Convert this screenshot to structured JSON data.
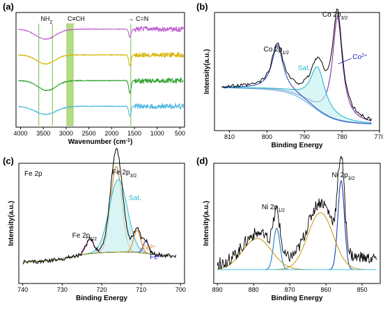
{
  "chart_data": [
    {
      "panel": "(a)",
      "type": "line",
      "xlabel": "Wavenumber (cm",
      "xlabel_sup": "-1",
      "xlabel_tail": ")",
      "ylabel": "",
      "xlim": [
        4100,
        400
      ],
      "x_reversed": true,
      "xticks": [
        4000,
        3500,
        3000,
        2500,
        2000,
        1500,
        1000,
        500
      ],
      "annotations": [
        {
          "text": "NH",
          "sub": "2",
          "x": 3430
        },
        {
          "text": "C≡CH",
          "x": 2780
        },
        {
          "text": "C=N",
          "x": 1450
        }
      ],
      "marker_lines": [
        3600,
        3300,
        1580
      ],
      "highlight_band": [
        2990,
        2840
      ],
      "highlight_color": "#92d050",
      "series": [
        {
          "color": "#c060d0",
          "offset": 3.0,
          "bands": [
            [
              3450,
              0.55,
              220
            ],
            [
              1600,
              0.45,
              25
            ]
          ]
        },
        {
          "color": "#d4b400",
          "offset": 2.0,
          "bands": [
            [
              3450,
              0.5,
              200
            ],
            [
              1600,
              0.6,
              25
            ]
          ]
        },
        {
          "color": "#2ca02c",
          "offset": 1.0,
          "bands": [
            [
              3420,
              0.55,
              200
            ],
            [
              1600,
              0.7,
              25
            ]
          ]
        },
        {
          "color": "#4bb8e0",
          "offset": 0.0,
          "bands": [
            [
              3450,
              0.45,
              230
            ],
            [
              1600,
              0.55,
              25
            ]
          ]
        }
      ]
    },
    {
      "panel": "(b)",
      "type": "line",
      "xlabel": "Binding Energy",
      "ylabel": "Intensity(a.u.)",
      "xlim": [
        814,
        770
      ],
      "x_reversed": true,
      "xticks": [
        810,
        800,
        790,
        780,
        770
      ],
      "annotations": [
        {
          "text": "Co 2p",
          "sub": "3/2",
          "x": 781.5
        },
        {
          "text": "Co 2p",
          "sub": "1/2",
          "x": 797.5
        },
        {
          "text": "Sat.",
          "x": 789
        },
        {
          "text": "Co",
          "sup": "2+",
          "x": 776
        }
      ],
      "peaks": [
        {
          "name": "Co 2p3/2",
          "center": 781.2,
          "height": 0.95,
          "width": 1.6,
          "color": "#7b2fa0"
        },
        {
          "name": "Sat.",
          "center": 786.5,
          "height": 0.4,
          "width": 2.4,
          "color": "#28b8d0"
        },
        {
          "name": "Co 2p1/2",
          "center": 797.2,
          "height": 0.42,
          "width": 1.8,
          "color": "#000000"
        }
      ],
      "background_color": "#4b9fd6",
      "fit_color": "#3cc0a0",
      "raw_color": "#000000"
    },
    {
      "panel": "(c)",
      "type": "line",
      "title": "Fe 2p",
      "xlabel": "Binding Energy",
      "ylabel": "Intensity(a.u.)",
      "xlim": [
        741,
        699
      ],
      "x_reversed": true,
      "xticks": [
        740,
        730,
        720,
        710,
        700
      ],
      "annotations": [
        {
          "text": "Fe 2p",
          "sub": "3/2",
          "x": 716
        },
        {
          "text": "Sat.",
          "x": 714
        },
        {
          "text": "Fe 2p",
          "sub": "1/2",
          "x": 724
        },
        {
          "text": "Fe",
          "sup": "3+",
          "x": 709.5
        },
        {
          "text": "Fe",
          "sup": "2+",
          "x": 707.5
        }
      ],
      "peaks": [
        {
          "name": "Fe 2p3/2",
          "center": 716.3,
          "height": 0.85,
          "width": 1.4,
          "color": "#c98a30"
        },
        {
          "name": "Sat.",
          "center": 715.8,
          "height": 0.72,
          "width": 2.3,
          "color": "#40c0d8"
        },
        {
          "name": "Fe 2p1/2",
          "center": 723.0,
          "height": 0.14,
          "width": 1.0,
          "color": "#c03ab0"
        },
        {
          "name": "Fe3+",
          "center": 711.0,
          "height": 0.22,
          "width": 0.9,
          "color": "#e08020"
        },
        {
          "name": "Fe2+",
          "center": 708.8,
          "height": 0.12,
          "width": 0.7,
          "color": "#2020c0"
        }
      ],
      "background_color": "#8aa020",
      "raw_color": "#000000"
    },
    {
      "panel": "(d)",
      "type": "line",
      "xlabel": "Binding Energy",
      "ylabel": "Intensity(a.u.)",
      "xlim": [
        891,
        845
      ],
      "x_reversed": true,
      "xticks": [
        890,
        880,
        870,
        860,
        850
      ],
      "annotations": [
        {
          "text": "Ni 2p",
          "sub": "3/2",
          "x": 855.6
        },
        {
          "text": "Ni 2p",
          "sub": "1/2",
          "x": 873.8
        }
      ],
      "peaks": [
        {
          "name": "Ni 2p3/2",
          "center": 855.8,
          "height": 0.86,
          "width": 0.9,
          "color": "#1f3fb0"
        },
        {
          "name": "Ni 2p1/2",
          "center": 873.6,
          "height": 0.4,
          "width": 0.9,
          "color": "#1f7fd0"
        },
        {
          "name": "broad",
          "center": 861.5,
          "height": 0.55,
          "width": 3.5,
          "color": "#c9a020"
        },
        {
          "name": "broad2",
          "center": 879.0,
          "height": 0.3,
          "width": 4.0,
          "color": "#c9a020"
        }
      ],
      "background_color": "#40c0e0",
      "raw_color": "#000000"
    }
  ]
}
